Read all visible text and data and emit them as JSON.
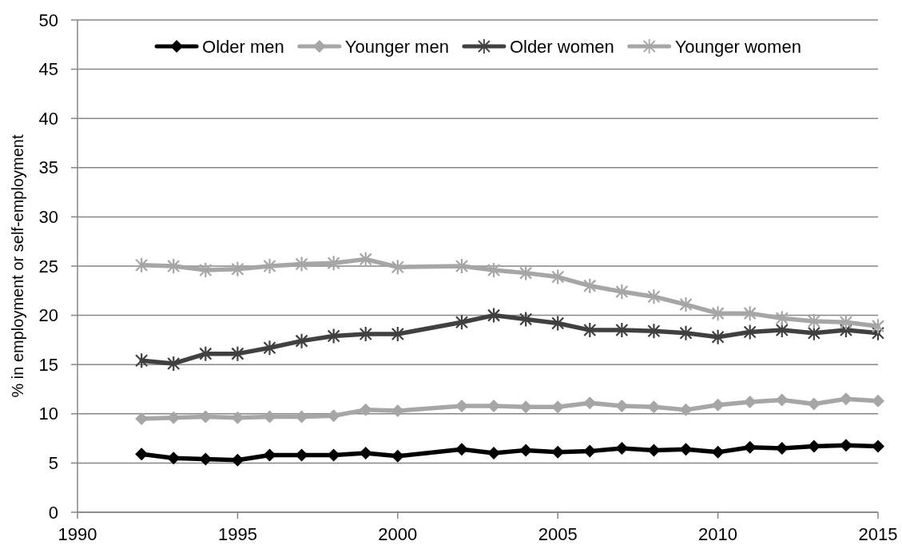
{
  "chart_data": {
    "type": "line",
    "ylabel": "% in employment or self-employment",
    "x": [
      1992,
      1993,
      1994,
      1995,
      1996,
      1997,
      1998,
      1999,
      2000,
      2002,
      2003,
      2004,
      2005,
      2006,
      2007,
      2008,
      2009,
      2010,
      2011,
      2012,
      2013,
      2014,
      2015
    ],
    "series": [
      {
        "name": "Older men",
        "color": "#000000",
        "marker": "diamond",
        "values": [
          5.9,
          5.5,
          5.4,
          5.3,
          5.8,
          5.8,
          5.8,
          6.0,
          5.7,
          6.4,
          6.0,
          6.3,
          6.1,
          6.2,
          6.5,
          6.3,
          6.4,
          6.1,
          6.6,
          6.5,
          6.7,
          6.8,
          6.7
        ]
      },
      {
        "name": "Younger men",
        "color": "#a6a6a6",
        "marker": "diamond",
        "values": [
          9.5,
          9.6,
          9.7,
          9.6,
          9.7,
          9.7,
          9.8,
          10.4,
          10.3,
          10.8,
          10.8,
          10.7,
          10.7,
          11.1,
          10.8,
          10.7,
          10.4,
          10.9,
          11.2,
          11.4,
          11.0,
          11.5,
          11.3
        ]
      },
      {
        "name": "Older women",
        "color": "#404040",
        "marker": "cross",
        "values": [
          15.4,
          15.1,
          16.1,
          16.1,
          16.7,
          17.4,
          17.9,
          18.1,
          18.1,
          19.3,
          20.0,
          19.6,
          19.2,
          18.5,
          18.5,
          18.4,
          18.2,
          17.8,
          18.3,
          18.5,
          18.2,
          18.5,
          18.2
        ]
      },
      {
        "name": "Younger women",
        "color": "#a6a6a6",
        "marker": "cross",
        "values": [
          25.1,
          25.0,
          24.6,
          24.7,
          25.0,
          25.2,
          25.3,
          25.7,
          24.9,
          25.0,
          24.6,
          24.3,
          23.9,
          23.0,
          22.4,
          21.9,
          21.1,
          20.2,
          20.2,
          19.7,
          19.4,
          19.3,
          18.9
        ]
      }
    ],
    "xlim": [
      1990,
      2015
    ],
    "xticks": [
      1990,
      1995,
      2000,
      2005,
      2010,
      2015
    ],
    "ylim": [
      0,
      50
    ],
    "yticks": [
      0,
      5,
      10,
      15,
      20,
      25,
      30,
      35,
      40,
      45,
      50
    ],
    "grid": "y",
    "legend": "top",
    "line_style": "solid"
  }
}
